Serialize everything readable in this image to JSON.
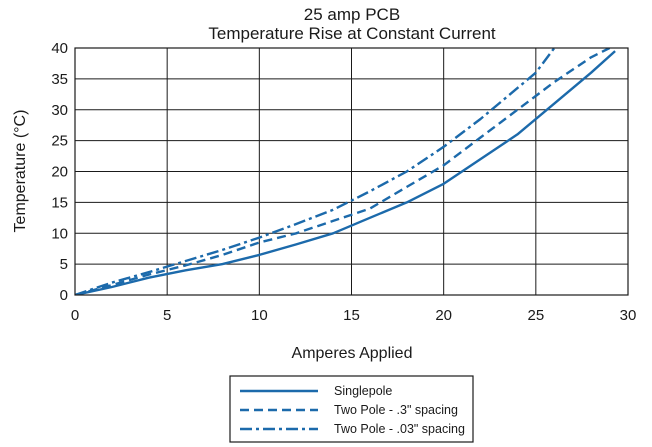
{
  "chart_data": {
    "type": "line",
    "title": "25 amp PCB",
    "subtitle": "Temperature Rise at Constant Current",
    "xlabel": "Amperes Applied",
    "ylabel": "Temperature (°C)",
    "xlim": [
      0,
      30
    ],
    "ylim": [
      0,
      40
    ],
    "x_ticks": [
      "0",
      "5",
      "10",
      "15",
      "20",
      "25",
      "30"
    ],
    "y_ticks": [
      "0",
      "5",
      "10",
      "15",
      "20",
      "25",
      "30",
      "35",
      "40"
    ],
    "grid": true,
    "legend_position": "bottom-center",
    "line_color": "#1c6aab",
    "series": [
      {
        "name": "Singlepole",
        "style": "solid",
        "points": [
          [
            0,
            0
          ],
          [
            2,
            1.3
          ],
          [
            4,
            2.8
          ],
          [
            6,
            4
          ],
          [
            8,
            5
          ],
          [
            10,
            6.5
          ],
          [
            12,
            8.2
          ],
          [
            14,
            10
          ],
          [
            16,
            12.5
          ],
          [
            18,
            15
          ],
          [
            20,
            18
          ],
          [
            22,
            22
          ],
          [
            24,
            26
          ],
          [
            26,
            31
          ],
          [
            28,
            36
          ],
          [
            29.3,
            39.5
          ]
        ]
      },
      {
        "name": "Two Pole - .3\" spacing",
        "style": "dashed",
        "points": [
          [
            0,
            0
          ],
          [
            2,
            1.6
          ],
          [
            4,
            3.3
          ],
          [
            6,
            4.8
          ],
          [
            8,
            6.5
          ],
          [
            10,
            8.5
          ],
          [
            12,
            10
          ],
          [
            14,
            12
          ],
          [
            16,
            14
          ],
          [
            18,
            17.5
          ],
          [
            20,
            21
          ],
          [
            22,
            25.5
          ],
          [
            24,
            30
          ],
          [
            26,
            34.5
          ],
          [
            28,
            38.5
          ],
          [
            29,
            40
          ]
        ]
      },
      {
        "name": "Two Pole - .03\" spacing",
        "style": "dashdot",
        "points": [
          [
            0,
            0
          ],
          [
            2,
            2
          ],
          [
            4,
            3.7
          ],
          [
            6,
            5.5
          ],
          [
            8,
            7.3
          ],
          [
            10,
            9.3
          ],
          [
            12,
            11.5
          ],
          [
            14,
            13.8
          ],
          [
            16,
            16.8
          ],
          [
            18,
            20
          ],
          [
            20,
            24
          ],
          [
            22,
            28.5
          ],
          [
            24,
            33.5
          ],
          [
            25,
            36
          ],
          [
            26,
            40
          ]
        ]
      }
    ]
  }
}
